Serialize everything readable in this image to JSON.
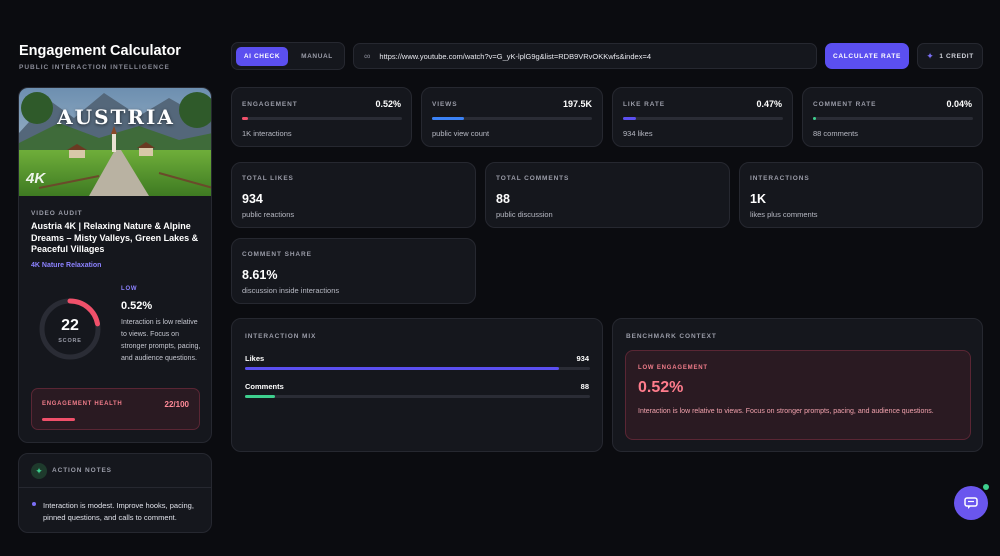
{
  "header": {
    "title": "Engagement Calculator",
    "subtitle": "PUBLIC INTERACTION INTELLIGENCE"
  },
  "mode_toggle": {
    "active": "AI CHECK",
    "inactive": "MANUAL"
  },
  "url_input": {
    "value": "https://www.youtube.com/watch?v=G_yK-lplG9g&list=RDB9VRvOKKwfs&index=4"
  },
  "calculate_button": "CALCULATE RATE",
  "credit_button": "1 CREDIT",
  "video": {
    "thumbnail_text": "AUSTRIA",
    "thumbnail_badge": "4K",
    "audit_label": "VIDEO AUDIT",
    "title": "Austria 4K | Relaxing Nature & Alpine Dreams – Misty Valleys, Green Lakes & Peaceful Villages",
    "channel": "4K Nature Relaxation",
    "score": "22",
    "score_label": "SCORE",
    "score_fraction": 0.22,
    "level": "LOW",
    "rate": "0.52%",
    "description": "Interaction is low relative to views. Focus on stronger prompts, pacing, and audience questions.",
    "health_label": "ENGAGEMENT HEALTH",
    "health_value": "22/100",
    "health_fraction": 0.22
  },
  "notes": {
    "title": "ACTION NOTES",
    "text": "Interaction is modest. Improve hooks, pacing, pinned questions, and calls to comment."
  },
  "metrics": [
    {
      "label": "ENGAGEMENT",
      "value": "0.52%",
      "sub": "1K interactions",
      "fill": 0.04,
      "color": "#f0506a"
    },
    {
      "label": "VIEWS",
      "value": "197.5K",
      "sub": "public view count",
      "fill": 0.2,
      "color": "#3b82f6"
    },
    {
      "label": "LIKE RATE",
      "value": "0.47%",
      "sub": "934 likes",
      "fill": 0.08,
      "color": "#5b4ff0"
    },
    {
      "label": "COMMENT RATE",
      "value": "0.04%",
      "sub": "88 comments",
      "fill": 0.02,
      "color": "#3ecf8e"
    }
  ],
  "stats": [
    {
      "label": "TOTAL LIKES",
      "value": "934",
      "sub": "public reactions"
    },
    {
      "label": "TOTAL COMMENTS",
      "value": "88",
      "sub": "public discussion"
    },
    {
      "label": "INTERACTIONS",
      "value": "1K",
      "sub": "likes plus comments"
    },
    {
      "label": "COMMENT SHARE",
      "value": "8.61%",
      "sub": "discussion inside interactions"
    }
  ],
  "interaction_mix": {
    "title": "INTERACTION MIX",
    "rows": [
      {
        "label": "Likes",
        "value": "934",
        "fill": 0.91,
        "color": "#5b4ff0"
      },
      {
        "label": "Comments",
        "value": "88",
        "fill": 0.086,
        "color": "#3ecf8e"
      }
    ]
  },
  "benchmark": {
    "title": "BENCHMARK CONTEXT",
    "tag": "LOW ENGAGEMENT",
    "value": "0.52%",
    "text": "Interaction is low relative to views. Focus on stronger prompts, pacing, and audience questions."
  }
}
